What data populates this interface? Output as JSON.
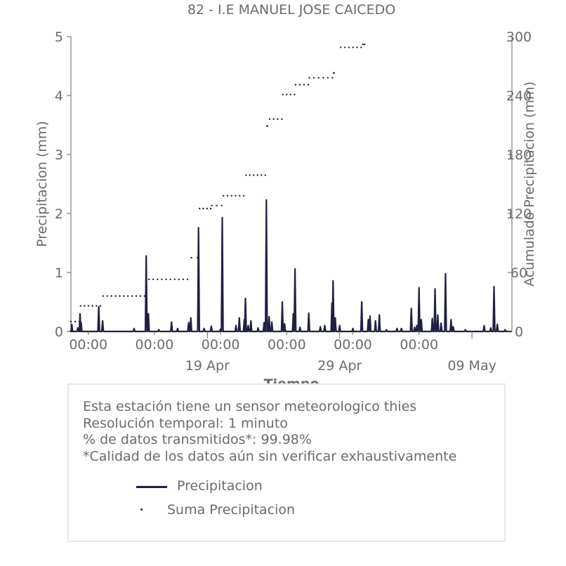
{
  "chart_data": {
    "type": "line",
    "title": "82 - I.E MANUEL JOSE CAICEDO",
    "xlabel": "Tiempo",
    "ylabel": "Precipitacion (mm)",
    "ylabel_right": "Acumulado Precipitacion (mm)",
    "x_range": [
      "2025-04-08T16:30",
      "2025-05-12T00:30"
    ],
    "ylim": [
      0,
      5
    ],
    "ylim_right": [
      0,
      300
    ],
    "y_ticks": [
      "0",
      "1",
      "2",
      "3",
      "4",
      "5"
    ],
    "y_ticks_right": [
      "0",
      "60",
      "120",
      "180",
      "240",
      "300"
    ],
    "x_ticks_minor": [
      {
        "date": "2025-04-10T00:00",
        "label": "00:00"
      },
      {
        "date": "2025-04-15T00:00",
        "label": "00:00"
      },
      {
        "date": "2025-04-20T00:00",
        "label": "00:00"
      },
      {
        "date": "2025-04-25T00:00",
        "label": "00:00"
      },
      {
        "date": "2025-04-30T00:00",
        "label": "00:00"
      },
      {
        "date": "2025-05-05T00:00",
        "label": "00:00"
      }
    ],
    "x_ticks_major": [
      {
        "date": "2025-04-19T00:00",
        "label": "19 Apr"
      },
      {
        "date": "2025-04-29T00:00",
        "label": "29 Apr"
      },
      {
        "date": "2025-05-09T00:00",
        "label": "09 May"
      }
    ],
    "series": [
      {
        "name": "Precipitacion",
        "style": "line",
        "color": "#1f2041",
        "axis": "left",
        "points": [
          [
            "2025-04-08T16:30",
            0.0
          ],
          [
            "2025-04-08T18:00",
            0.12
          ],
          [
            "2025-04-09T05:00",
            0.06
          ],
          [
            "2025-04-09T09:00",
            0.3
          ],
          [
            "2025-04-09T11:00",
            0.15
          ],
          [
            "2025-04-10T19:00",
            0.42
          ],
          [
            "2025-04-11T02:00",
            0.18
          ],
          [
            "2025-04-13T11:00",
            0.05
          ],
          [
            "2025-04-14T09:00",
            1.28
          ],
          [
            "2025-04-14T13:00",
            0.3
          ],
          [
            "2025-04-15T08:00",
            0.03
          ],
          [
            "2025-04-16T07:00",
            0.16
          ],
          [
            "2025-04-16T18:00",
            0.05
          ],
          [
            "2025-04-17T14:00",
            0.15
          ],
          [
            "2025-04-17T18:00",
            0.23
          ],
          [
            "2025-04-18T08:00",
            1.76
          ],
          [
            "2025-04-18T18:00",
            0.05
          ],
          [
            "2025-04-19T07:00",
            0.09
          ],
          [
            "2025-04-20T00:00",
            0.04
          ],
          [
            "2025-04-20T03:00",
            1.93
          ],
          [
            "2025-04-21T04:00",
            0.1
          ],
          [
            "2025-04-21T10:00",
            0.23
          ],
          [
            "2025-04-21T19:00",
            0.2
          ],
          [
            "2025-04-21T21:00",
            0.56
          ],
          [
            "2025-04-22T02:00",
            0.1
          ],
          [
            "2025-04-22T07:00",
            0.18
          ],
          [
            "2025-04-22T20:00",
            0.06
          ],
          [
            "2025-04-23T07:00",
            0.15
          ],
          [
            "2025-04-23T11:00",
            2.23
          ],
          [
            "2025-04-23T16:00",
            0.25
          ],
          [
            "2025-04-23T21:00",
            0.16
          ],
          [
            "2025-04-24T16:00",
            0.5
          ],
          [
            "2025-04-24T20:00",
            0.13
          ],
          [
            "2025-04-25T12:00",
            0.3
          ],
          [
            "2025-04-25T15:00",
            1.06
          ],
          [
            "2025-04-26T00:00",
            0.07
          ],
          [
            "2025-04-26T16:00",
            0.31
          ],
          [
            "2025-04-27T13:00",
            0.08
          ],
          [
            "2025-04-27T21:00",
            0.1
          ],
          [
            "2025-04-28T10:00",
            0.48
          ],
          [
            "2025-04-28T12:00",
            0.86
          ],
          [
            "2025-04-28T16:00",
            0.23
          ],
          [
            "2025-04-29T00:00",
            0.1
          ],
          [
            "2025-04-30T00:00",
            0.05
          ],
          [
            "2025-04-30T16:00",
            0.5
          ],
          [
            "2025-05-01T04:00",
            0.2
          ],
          [
            "2025-05-01T07:00",
            0.26
          ],
          [
            "2025-05-01T17:00",
            0.18
          ],
          [
            "2025-05-02T00:00",
            0.28
          ],
          [
            "2025-05-02T13:00",
            0.03
          ],
          [
            "2025-05-03T08:00",
            0.05
          ],
          [
            "2025-05-03T16:00",
            0.05
          ],
          [
            "2025-05-04T10:00",
            0.39
          ],
          [
            "2025-05-04T16:00",
            0.07
          ],
          [
            "2025-05-04T20:00",
            0.1
          ],
          [
            "2025-05-05T00:00",
            0.74
          ],
          [
            "2025-05-05T04:00",
            0.2
          ],
          [
            "2025-05-06T00:00",
            0.22
          ],
          [
            "2025-05-06T05:00",
            0.72
          ],
          [
            "2025-05-06T10:00",
            0.28
          ],
          [
            "2025-05-06T16:00",
            0.14
          ],
          [
            "2025-05-07T00:00",
            0.98
          ],
          [
            "2025-05-07T10:00",
            0.2
          ],
          [
            "2025-05-07T14:00",
            0.08
          ],
          [
            "2025-05-08T12:00",
            0.03
          ],
          [
            "2025-05-09T22:00",
            0.1
          ],
          [
            "2025-05-10T10:00",
            0.06
          ],
          [
            "2025-05-10T16:00",
            0.76
          ],
          [
            "2025-05-10T22:00",
            0.12
          ],
          [
            "2025-05-11T12:00",
            0.03
          ]
        ]
      },
      {
        "name": "Suma Precipitacion",
        "style": "dots",
        "color": "#1f2041",
        "axis": "right",
        "segments": [
          {
            "start": "2025-04-08T16:30",
            "end": "2025-04-09T08:00",
            "value": 10
          },
          {
            "start": "2025-04-09T10:00",
            "end": "2025-04-10T22:00",
            "value": 26
          },
          {
            "start": "2025-04-11T03:00",
            "end": "2025-04-14T06:00",
            "value": 36
          },
          {
            "start": "2025-04-14T14:00",
            "end": "2025-04-17T12:00",
            "value": 53
          },
          {
            "start": "2025-04-17T19:00",
            "end": "2025-04-18T06:00",
            "value": 75
          },
          {
            "start": "2025-04-18T10:00",
            "end": "2025-04-19T06:00",
            "value": 125
          },
          {
            "start": "2025-04-19T08:00",
            "end": "2025-04-20T02:00",
            "value": 128
          },
          {
            "start": "2025-04-20T05:00",
            "end": "2025-04-21T18:00",
            "value": 138
          },
          {
            "start": "2025-04-21T22:00",
            "end": "2025-04-23T09:00",
            "value": 159
          },
          {
            "start": "2025-04-23T12:00",
            "end": "2025-04-23T13:00",
            "value": 209
          },
          {
            "start": "2025-04-23T17:00",
            "end": "2025-04-24T15:00",
            "value": 216
          },
          {
            "start": "2025-04-24T17:00",
            "end": "2025-04-25T14:00",
            "value": 241
          },
          {
            "start": "2025-04-25T16:00",
            "end": "2025-04-26T15:00",
            "value": 251
          },
          {
            "start": "2025-04-26T17:00",
            "end": "2025-04-28T11:00",
            "value": 258
          },
          {
            "start": "2025-04-28T13:00",
            "end": "2025-04-28T14:00",
            "value": 263
          },
          {
            "start": "2025-04-29T02:00",
            "end": "2025-04-30T15:00",
            "value": 289
          },
          {
            "start": "2025-04-30T18:00",
            "end": "2025-04-30T21:00",
            "value": 292
          }
        ]
      }
    ],
    "legend": {
      "position": "inside-info-box",
      "entries": [
        {
          "label": "Precipitacion",
          "marker": "line"
        },
        {
          "label": "Suma Precipitacion",
          "marker": "dot"
        }
      ]
    },
    "grid": false
  },
  "info": {
    "lines": [
      "Esta estación tiene un sensor meteorologico thies",
      "Resolución temporal: 1 minuto",
      "% de datos transmitidos*: 99.98%",
      "*Calidad de los datos aún sin verificar exhaustivamente"
    ]
  },
  "colors": {
    "series": "#1f2041",
    "axis": "#666666",
    "text": "#6b6b6b",
    "box_border": "#e6e6e6"
  }
}
